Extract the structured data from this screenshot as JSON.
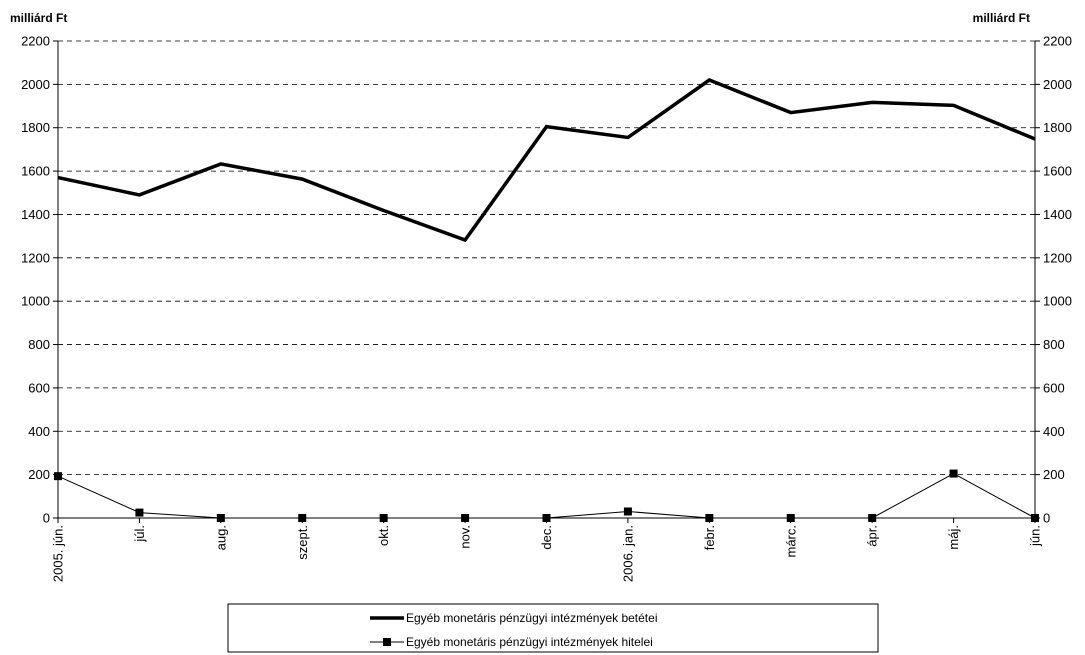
{
  "chart_data": {
    "type": "line",
    "title": "",
    "y_unit_left": "milliárd Ft",
    "y_unit_right": "milliárd Ft",
    "ylim": [
      0,
      2200
    ],
    "y_ticks": [
      0,
      200,
      400,
      600,
      800,
      1000,
      1200,
      1400,
      1600,
      1800,
      2000,
      2200
    ],
    "grid": "horizontal dashed",
    "legend_position": "bottom-center",
    "categories": [
      "2005. jún.",
      "júl.",
      "aug.",
      "szept.",
      "okt.",
      "nov.",
      "dec.",
      "2006. jan.",
      "febr.",
      "márc.",
      "ápr.",
      "máj.",
      "jún."
    ],
    "series": [
      {
        "name": "Egyéb monetáris pénzügyi  intézmények betétei",
        "style": "thick line, no markers",
        "color": "#000000",
        "values": [
          1570,
          1490,
          1633,
          1563,
          1418,
          1282,
          1805,
          1755,
          2020,
          1870,
          1917,
          1903,
          1748
        ]
      },
      {
        "name": "Egyéb monetáris pénzügyi intézmények hitelei",
        "style": "thin line, square markers",
        "color": "#000000",
        "values": [
          193,
          25,
          0,
          0,
          0,
          0,
          0,
          30,
          0,
          0,
          0,
          205,
          0
        ]
      }
    ]
  }
}
